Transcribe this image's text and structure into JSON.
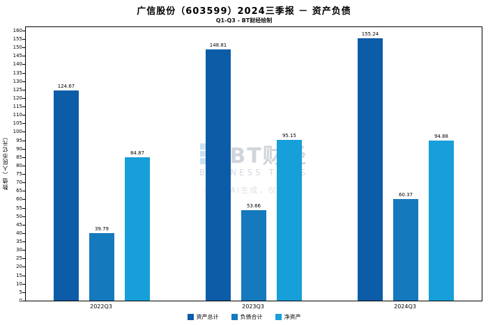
{
  "watermark": {
    "brand": "BT财经",
    "brand_sub": "BUSINESS TIMES",
    "note": "内容由AI生成，仅供参考"
  },
  "chart_data": {
    "type": "bar",
    "title": "广信股份（603599）2024三季报 － 资产负债",
    "subtitle": "Q1-Q3 - BT财经绘制",
    "categories": [
      "2022Q3",
      "2023Q3",
      "2024Q3"
    ],
    "series": [
      {
        "name": "资产总计",
        "color": "#0d5ca8",
        "values": [
          124.67,
          148.81,
          155.24
        ]
      },
      {
        "name": "负债合计",
        "color": "#1579bd",
        "values": [
          39.79,
          53.66,
          60.37
        ]
      },
      {
        "name": "净资产",
        "color": "#169fd9",
        "values": [
          84.87,
          95.15,
          94.88
        ]
      }
    ],
    "ylabel": "数值（人民币亿元）",
    "ylim": [
      0,
      160
    ],
    "ytick_step": 5,
    "grid": false,
    "legend_position": "bottom"
  }
}
